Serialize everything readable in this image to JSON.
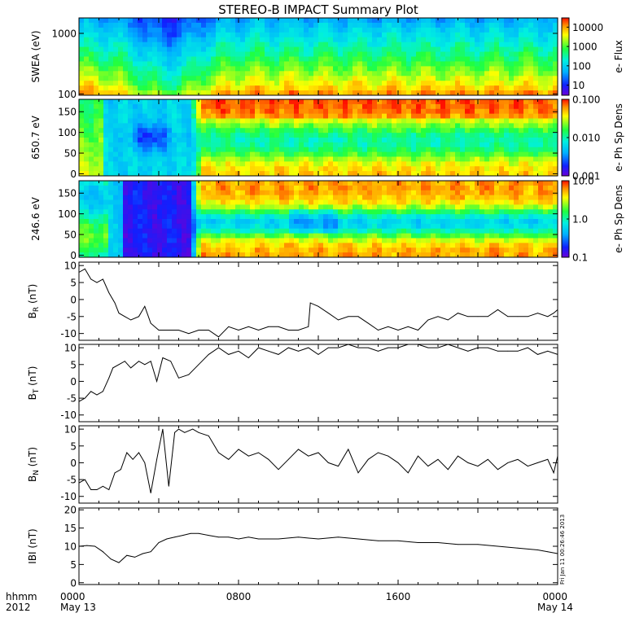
{
  "title": "STEREO-B IMPACT Summary Plot",
  "footer": {
    "row1_left": "hhmm",
    "row2_left": "2012",
    "tick_labels": [
      "0000",
      "0800",
      "1600",
      "0000"
    ],
    "date_start": "May 13",
    "date_end": "May 14"
  },
  "side_stamp": "Fri Jan 11 00:26:46 2013",
  "colors": {
    "series": "#000000",
    "background": "#ffffff"
  },
  "chart_data": [
    {
      "type": "heatmap",
      "id": "swea",
      "ylabel": "SWEA (eV)",
      "yscale": "log",
      "ylim": [
        95,
        1800
      ],
      "y_ticks": [
        "1000",
        "100"
      ],
      "y_tick_values": [
        1000,
        100
      ],
      "colorbar": {
        "label": "e- Flux",
        "scale": "log",
        "range": [
          3,
          30000
        ],
        "ticks": [
          "10000",
          "1000",
          "100",
          "10"
        ],
        "tick_values": [
          10000,
          1000,
          100,
          10
        ]
      },
      "x_range_hours": [
        0,
        24
      ]
    },
    {
      "type": "heatmap",
      "id": "pad650",
      "ylabel": "650.7 eV",
      "yscale": "linear",
      "ylim": [
        -5,
        180
      ],
      "y_ticks": [
        "150",
        "100",
        "50",
        "0"
      ],
      "y_tick_values": [
        150,
        100,
        50,
        0
      ],
      "colorbar": {
        "label": "e- Ph Sp Dens",
        "scale": "log",
        "range": [
          0.001,
          0.1
        ],
        "ticks": [
          "0.100",
          "0.010",
          "0.001"
        ],
        "tick_values": [
          0.1,
          0.01,
          0.001
        ]
      },
      "x_range_hours": [
        0,
        24
      ]
    },
    {
      "type": "heatmap",
      "id": "pad246",
      "ylabel": "246.6 eV",
      "yscale": "linear",
      "ylim": [
        -5,
        180
      ],
      "y_ticks": [
        "150",
        "100",
        "50",
        "0"
      ],
      "y_tick_values": [
        150,
        100,
        50,
        0
      ],
      "colorbar": {
        "label": "e- Ph Sp Dens",
        "scale": "log",
        "range": [
          0.1,
          10
        ],
        "ticks": [
          "10.0",
          "1.0",
          "0.1"
        ],
        "tick_values": [
          10,
          1,
          0.1
        ]
      },
      "x_range_hours": [
        0,
        24
      ]
    },
    {
      "type": "line",
      "id": "br",
      "ylabel": "B_R (nT)",
      "ylabel_main": "B",
      "ylabel_sub": "R",
      "ylabel_unit": " (nT)",
      "ylim": [
        -12,
        11
      ],
      "y_ticks": [
        "10",
        "5",
        "0",
        "-5",
        "-10"
      ],
      "y_tick_values": [
        10,
        5,
        0,
        -5,
        -10
      ],
      "x_range_hours": [
        0,
        24
      ],
      "x": [
        0,
        0.3,
        0.6,
        0.9,
        1.2,
        1.5,
        1.8,
        2.0,
        2.3,
        2.6,
        3.0,
        3.3,
        3.6,
        4.0,
        4.5,
        5.0,
        5.5,
        6.0,
        6.5,
        7.0,
        7.5,
        8.0,
        8.5,
        9.0,
        9.5,
        10.0,
        10.5,
        11.0,
        11.5,
        11.6,
        12.0,
        12.5,
        13.0,
        13.5,
        14.0,
        14.5,
        15.0,
        15.5,
        16.0,
        16.5,
        17.0,
        17.5,
        18.0,
        18.5,
        19.0,
        19.5,
        20.0,
        20.5,
        21.0,
        21.5,
        22.0,
        22.5,
        23.0,
        23.5,
        23.8,
        24.0
      ],
      "values": [
        8,
        9,
        6,
        5,
        6,
        2,
        -1,
        -4,
        -5,
        -6,
        -5,
        -2,
        -7,
        -9,
        -9,
        -9,
        -10,
        -9,
        -9,
        -11,
        -8,
        -9,
        -8,
        -9,
        -8,
        -8,
        -9,
        -9,
        -8,
        -1,
        -2,
        -4,
        -6,
        -5,
        -5,
        -7,
        -9,
        -8,
        -9,
        -8,
        -9,
        -6,
        -5,
        -6,
        -4,
        -5,
        -5,
        -5,
        -3,
        -5,
        -5,
        -5,
        -4,
        -5,
        -4,
        -3
      ]
    },
    {
      "type": "line",
      "id": "bt",
      "ylabel": "B_T (nT)",
      "ylabel_main": "B",
      "ylabel_sub": "T",
      "ylabel_unit": " (nT)",
      "ylim": [
        -12,
        11
      ],
      "y_ticks": [
        "10",
        "5",
        "0",
        "-5",
        "-10"
      ],
      "y_tick_values": [
        10,
        5,
        0,
        -5,
        -10
      ],
      "x_range_hours": [
        0,
        24
      ],
      "x": [
        0,
        0.3,
        0.6,
        0.9,
        1.2,
        1.5,
        1.7,
        2.0,
        2.3,
        2.6,
        3.0,
        3.3,
        3.6,
        3.9,
        4.2,
        4.6,
        5.0,
        5.5,
        6.0,
        6.5,
        7.0,
        7.5,
        8.0,
        8.5,
        9.0,
        9.5,
        10.0,
        10.5,
        11.0,
        11.5,
        12.0,
        12.5,
        13.0,
        13.5,
        14.0,
        14.5,
        15.0,
        15.5,
        16.0,
        16.5,
        17.0,
        17.5,
        18.0,
        18.5,
        19.0,
        19.5,
        20.0,
        20.5,
        21.0,
        21.5,
        22.0,
        22.5,
        23.0,
        23.5,
        24.0
      ],
      "values": [
        -6,
        -5,
        -3,
        -4,
        -3,
        1,
        4,
        5,
        6,
        4,
        6,
        5,
        6,
        0,
        7,
        6,
        1,
        2,
        5,
        8,
        10,
        8,
        9,
        7,
        10,
        9,
        8,
        10,
        9,
        10,
        8,
        10,
        10,
        11,
        10,
        10,
        9,
        10,
        10,
        11,
        11,
        10,
        10,
        11,
        10,
        9,
        10,
        10,
        9,
        9,
        9,
        10,
        8,
        9,
        8
      ]
    },
    {
      "type": "line",
      "id": "bn",
      "ylabel": "B_N (nT)",
      "ylabel_main": "B",
      "ylabel_sub": "N",
      "ylabel_unit": " (nT)",
      "ylim": [
        -12,
        11
      ],
      "y_ticks": [
        "10",
        "5",
        "0",
        "-5",
        "-10"
      ],
      "y_tick_values": [
        10,
        5,
        0,
        -5,
        -10
      ],
      "x_range_hours": [
        0,
        24
      ],
      "x": [
        0,
        0.3,
        0.6,
        0.9,
        1.2,
        1.5,
        1.8,
        2.1,
        2.4,
        2.7,
        3.0,
        3.3,
        3.6,
        3.9,
        4.2,
        4.5,
        4.8,
        5.0,
        5.3,
        5.7,
        6.0,
        6.5,
        7.0,
        7.5,
        8.0,
        8.5,
        9.0,
        9.5,
        10.0,
        10.5,
        11.0,
        11.5,
        12.0,
        12.5,
        13.0,
        13.5,
        14.0,
        14.5,
        15.0,
        15.5,
        16.0,
        16.5,
        17.0,
        17.5,
        18.0,
        18.5,
        19.0,
        19.5,
        20.0,
        20.5,
        21.0,
        21.5,
        22.0,
        22.5,
        23.0,
        23.5,
        23.8,
        24.0
      ],
      "values": [
        -6,
        -5,
        -8,
        -8,
        -7,
        -8,
        -3,
        -2,
        3,
        1,
        3,
        0,
        -9,
        1,
        10,
        -7,
        9,
        10,
        9,
        10,
        9,
        8,
        3,
        1,
        4,
        2,
        3,
        1,
        -2,
        1,
        4,
        2,
        3,
        0,
        -1,
        4,
        -3,
        1,
        3,
        2,
        0,
        -3,
        2,
        -1,
        1,
        -2,
        2,
        0,
        -1,
        1,
        -2,
        0,
        1,
        -1,
        0,
        1,
        -3,
        2
      ]
    },
    {
      "type": "line",
      "id": "babs",
      "ylabel": "|B| (nT)",
      "ylabel_main": "IBI",
      "ylabel_sub": "",
      "ylabel_unit": " (nT)",
      "ylim": [
        -0.5,
        20.5
      ],
      "y_ticks": [
        "20",
        "15",
        "10",
        "5",
        "0"
      ],
      "y_tick_values": [
        20,
        15,
        10,
        5,
        0
      ],
      "x_range_hours": [
        0,
        24
      ],
      "x": [
        0,
        0.4,
        0.8,
        1.2,
        1.6,
        2.0,
        2.4,
        2.8,
        3.2,
        3.6,
        4.0,
        4.4,
        4.8,
        5.2,
        5.6,
        6.0,
        6.5,
        7.0,
        7.5,
        8.0,
        8.5,
        9.0,
        10.0,
        11.0,
        12.0,
        13.0,
        14.0,
        15.0,
        16.0,
        17.0,
        18.0,
        19.0,
        20.0,
        21.0,
        22.0,
        23.0,
        23.5,
        24.0
      ],
      "values": [
        10,
        10.2,
        10,
        8.5,
        6.5,
        5.5,
        7.5,
        7,
        8,
        8.5,
        11,
        12,
        12.5,
        13,
        13.5,
        13.5,
        13,
        12.5,
        12.5,
        12,
        12.5,
        12,
        12,
        12.5,
        12,
        12.5,
        12,
        11.5,
        11.5,
        11,
        11,
        10.5,
        10.5,
        10,
        9.5,
        9,
        8.5,
        8
      ]
    }
  ]
}
